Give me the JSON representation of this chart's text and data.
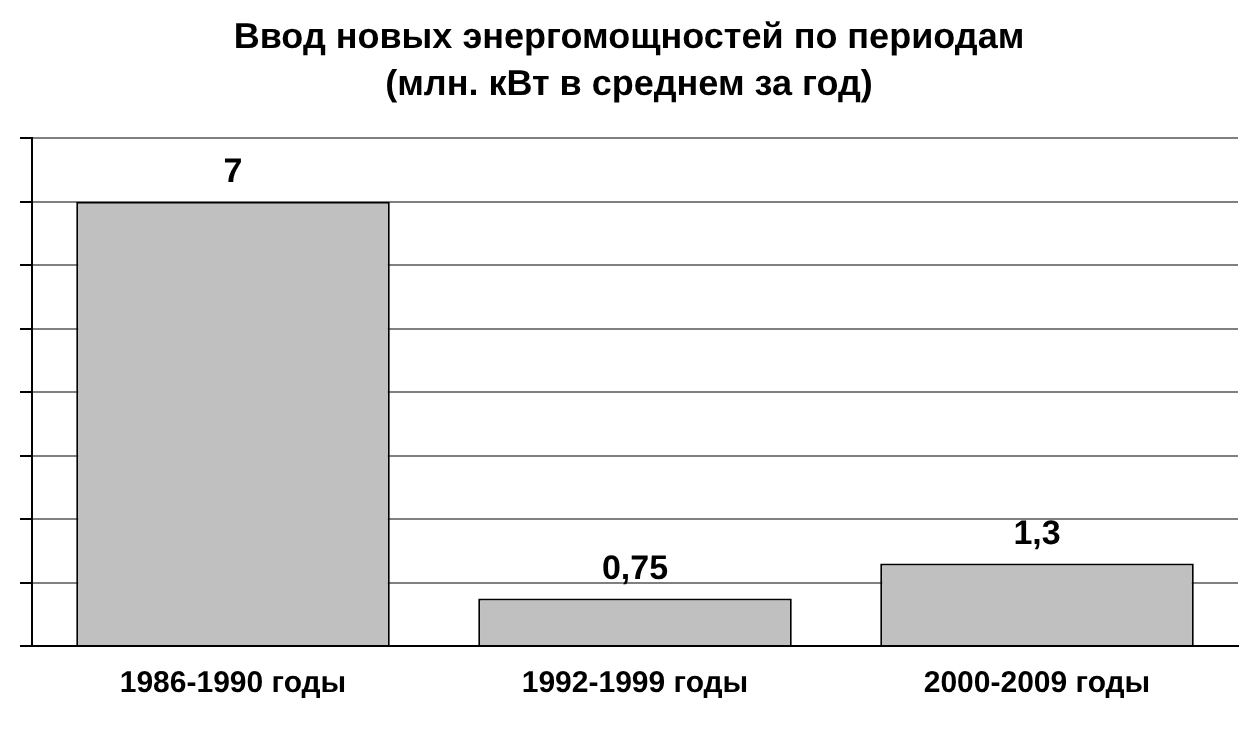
{
  "chart_data": {
    "type": "bar",
    "title": "Ввод новых энергомощностей по периодам",
    "subtitle": "(млн. кВт в среднем за год)",
    "categories": [
      "1986-1990 годы",
      "1992-1999 годы",
      "2000-2009 годы"
    ],
    "values": [
      7,
      0.75,
      1.3
    ],
    "value_labels": [
      "7",
      "0,75",
      "1,3"
    ],
    "color": "#c0c0c0",
    "ylim": [
      0,
      8
    ],
    "yticks": [
      {
        "value": 0,
        "label": null
      },
      {
        "value": 1,
        "label": null
      },
      {
        "value": 2,
        "label": null
      },
      {
        "value": 3,
        "label": null
      },
      {
        "value": 4,
        "label": null
      },
      {
        "value": 5,
        "label": null
      },
      {
        "value": 6,
        "label": null
      },
      {
        "value": 7,
        "label": null
      },
      {
        "value": 8,
        "label": null
      }
    ],
    "grid": "y",
    "tick_labels": "x"
  }
}
